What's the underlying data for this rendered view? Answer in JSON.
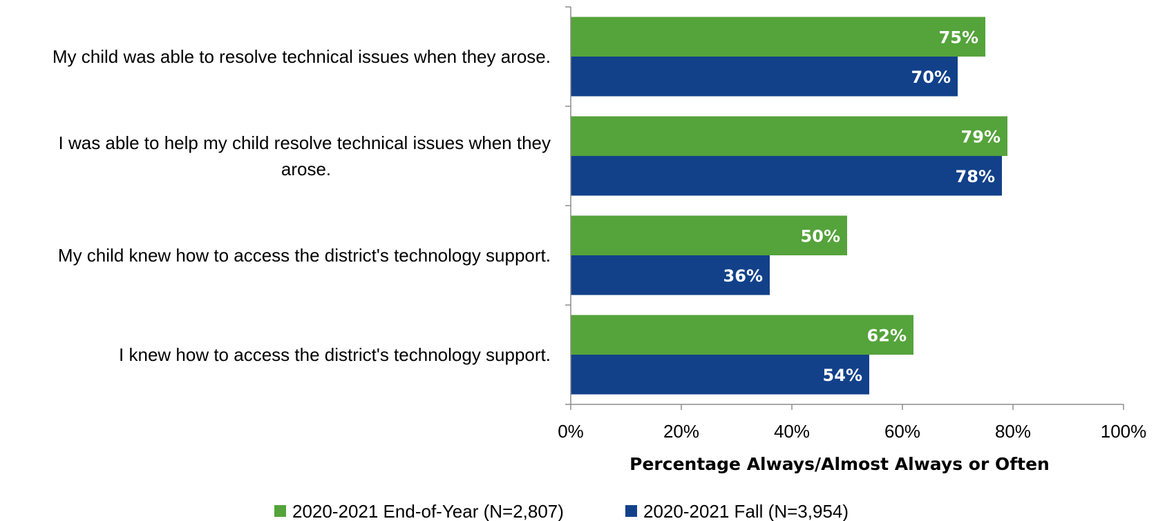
{
  "chart_data": {
    "type": "bar",
    "orientation": "horizontal",
    "categories": [
      "My child was able to resolve technical issues when they arose.",
      "I was able to help my child resolve technical issues when they arose.",
      "My child knew how to access the district's technology support.",
      "I knew how to access the district's technology support."
    ],
    "category_lines": [
      [
        "My child was able to resolve technical issues when they arose."
      ],
      [
        "I was able to help my child resolve technical issues when they",
        "arose."
      ],
      [
        "My child knew how to access the district's technology support."
      ],
      [
        "I knew how to access the district's technology support."
      ]
    ],
    "series": [
      {
        "name": "2020-2021 End-of-Year (N=2,807)",
        "color": "#55a33b",
        "values": [
          75,
          79,
          50,
          62
        ],
        "labels": [
          "75%",
          "79%",
          "50%",
          "62%"
        ]
      },
      {
        "name": "2020-2021 Fall (N=3,954)",
        "color": "#12418a",
        "values": [
          70,
          78,
          36,
          54
        ],
        "labels": [
          "70%",
          "78%",
          "36%",
          "54%"
        ]
      }
    ],
    "xlabel": "Percentage Always/Almost Always or Often",
    "xlim": [
      0,
      100
    ],
    "xticks": [
      0,
      20,
      40,
      60,
      80,
      100
    ],
    "xtick_labels": [
      "0%",
      "20%",
      "40%",
      "60%",
      "80%",
      "100%"
    ],
    "grid": false,
    "legend_position": "bottom"
  }
}
